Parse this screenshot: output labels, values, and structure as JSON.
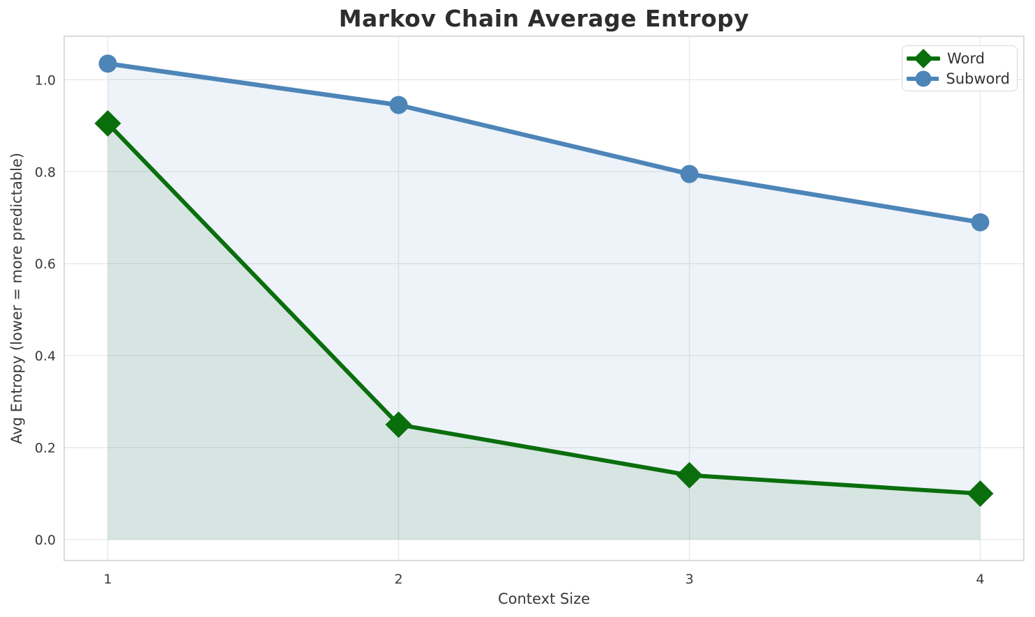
{
  "chart_data": {
    "type": "line",
    "title": "Markov Chain Average Entropy",
    "xlabel": "Context Size",
    "ylabel": "Avg Entropy (lower = more predictable)",
    "x": [
      1,
      2,
      3,
      4
    ],
    "xticks": [
      {
        "value": 1,
        "label": "1"
      },
      {
        "value": 2,
        "label": "2"
      },
      {
        "value": 3,
        "label": "3"
      },
      {
        "value": 4,
        "label": "4"
      }
    ],
    "yticks": [
      {
        "value": 0.0,
        "label": "0.0"
      },
      {
        "value": 0.2,
        "label": "0.2"
      },
      {
        "value": 0.4,
        "label": "0.4"
      },
      {
        "value": 0.6,
        "label": "0.6"
      },
      {
        "value": 0.8,
        "label": "0.8"
      },
      {
        "value": 1.0,
        "label": "1.0"
      }
    ],
    "xlim": [
      0.85,
      4.15
    ],
    "ylim": [
      -0.0455,
      1.0945
    ],
    "grid": true,
    "legend_position": "upper right",
    "series": [
      {
        "name": "Word",
        "values": [
          0.905,
          0.25,
          0.14,
          0.1
        ],
        "color": "#0a6e0c",
        "marker": "diamond",
        "fill_to_zero": true,
        "fill_opacity": 0.1
      },
      {
        "name": "Subword",
        "values": [
          1.035,
          0.945,
          0.795,
          0.69
        ],
        "color": "#4d85b8",
        "marker": "circle",
        "fill_to_zero": true,
        "fill_opacity": 0.1
      }
    ]
  }
}
